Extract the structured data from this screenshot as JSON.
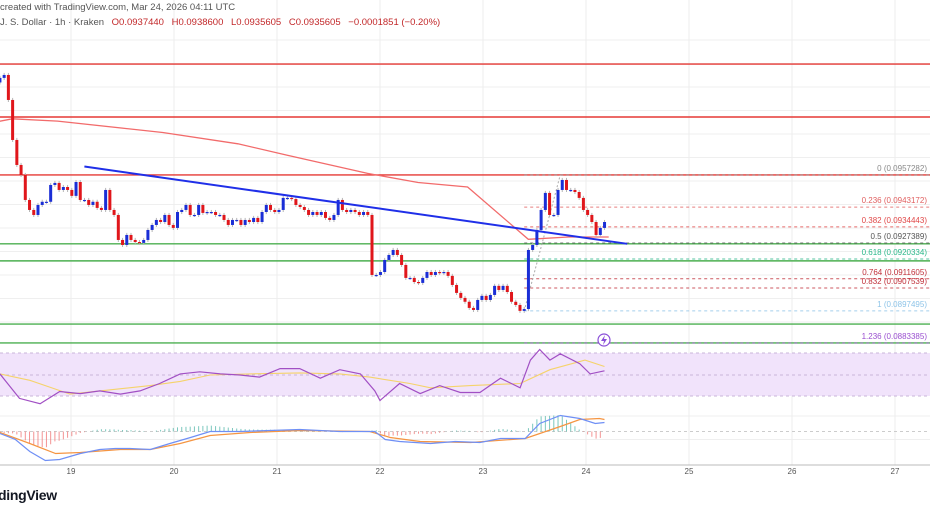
{
  "header": {
    "created": "created with TradingView.com, Mar 24, 2026 04:11 UTC",
    "symbol": "J. S. Dollar · 1h · Kraken",
    "open": "O0.0937440",
    "high": "H0.0938600",
    "low": "L0.0935605",
    "close": "C0.0935605",
    "change": "−0.0001851 (−0.20%)"
  },
  "logo": "dingView",
  "colors": {
    "up": "#1a2ed6",
    "down": "#e0161b",
    "trend": "#1f2fe8",
    "ma": "#f26b6b",
    "rsi": "#a14fc4",
    "rsi_ma": "#f5d36b",
    "macd": "#6f8ff5",
    "signal": "#f59542",
    "hist_up": "#4fb5a8",
    "hist_down": "#f07070",
    "support": "#4caf50",
    "resistance": "#e53935"
  },
  "icons": {
    "event": "lightning-icon"
  },
  "chart_data": [
    {
      "type": "candlestick",
      "x_axis_ticks": [
        "19",
        "20",
        "21",
        "22",
        "23",
        "24",
        "25",
        "26",
        "27"
      ],
      "x_range_dates": [
        18.31,
        24.18
      ],
      "first_open": 0.0998,
      "closes": [
        0.1,
        0.10013,
        0.09903,
        0.09727,
        0.09617,
        0.09573,
        0.09463,
        0.09419,
        0.09397,
        0.09441,
        0.09455,
        0.09455,
        0.09529,
        0.09538,
        0.09507,
        0.0952,
        0.09507,
        0.09481,
        0.09542,
        0.09463,
        0.09463,
        0.09441,
        0.09455,
        0.09428,
        0.09419,
        0.09507,
        0.09419,
        0.09397,
        0.09287,
        0.09265,
        0.09309,
        0.09287,
        0.09278,
        0.09274,
        0.09287,
        0.09331,
        0.09353,
        0.09375,
        0.09366,
        0.09397,
        0.09353,
        0.0934,
        0.0941,
        0.09419,
        0.09441,
        0.09397,
        0.09397,
        0.09441,
        0.09406,
        0.0941,
        0.0941,
        0.09397,
        0.09397,
        0.09375,
        0.09353,
        0.09375,
        0.09375,
        0.09353,
        0.09375,
        0.09366,
        0.09384,
        0.09366,
        0.0941,
        0.09441,
        0.09419,
        0.0941,
        0.09419,
        0.09472,
        0.09472,
        0.09467,
        0.09441,
        0.09432,
        0.09419,
        0.09397,
        0.0941,
        0.09397,
        0.0941,
        0.09384,
        0.09375,
        0.09397,
        0.09463,
        0.09419,
        0.0941,
        0.09419,
        0.0941,
        0.09397,
        0.0941,
        0.09397,
        0.09133,
        0.09133,
        0.09146,
        0.09199,
        0.09221,
        0.09243,
        0.09221,
        0.09177,
        0.0912,
        0.0912,
        0.09102,
        0.09098,
        0.0912,
        0.09146,
        0.09133,
        0.09146,
        0.09142,
        0.09146,
        0.09129,
        0.09089,
        0.09054,
        0.09032,
        0.09015,
        0.08988,
        0.08979,
        0.09023,
        0.09041,
        0.09023,
        0.09045,
        0.09085,
        0.09067,
        0.09085,
        0.09058,
        0.09015,
        0.09001,
        0.08975,
        0.08983,
        0.09243,
        0.09265,
        0.09331,
        0.09419,
        0.09494,
        0.09397,
        0.09397,
        0.09507,
        0.09551,
        0.09507,
        0.09507,
        0.09498,
        0.09472,
        0.09419,
        0.09397,
        0.09366,
        0.09309,
        0.0934,
        0.09366
      ],
      "moving_average": [
        [
          18.2,
          0.098
        ],
        [
          18.43,
          0.0982
        ],
        [
          18.87,
          0.0981
        ],
        [
          19.89,
          0.0976
        ],
        [
          20.62,
          0.0971
        ],
        [
          21.1,
          0.0966
        ],
        [
          21.88,
          0.0958
        ],
        [
          22.37,
          0.0954
        ],
        [
          22.85,
          0.0952
        ],
        [
          23.44,
          0.0929
        ],
        [
          23.83,
          0.093
        ],
        [
          24.22,
          0.093
        ]
      ],
      "trendline": [
        [
          19.13,
          0.0961
        ],
        [
          24.4,
          0.0927
        ]
      ],
      "horizontal_levels": {
        "resistance": [
          0.10061,
          0.09828,
          0.09573
        ],
        "support": [
          0.0927,
          0.09195,
          0.08917,
          0.08834
        ]
      },
      "fibonacci": {
        "from_date": 23.4,
        "levels": [
          {
            "label": "0 (0.0957282)",
            "price": 0.0957282,
            "color": "#888888"
          },
          {
            "label": "0.236 (0.0943172)",
            "price": 0.0943172,
            "color": "#e06060"
          },
          {
            "label": "0.382 (0.0934443)",
            "price": 0.0934443,
            "color": "#e04848"
          },
          {
            "label": "0.5 (0.0927389)",
            "price": 0.0927389,
            "color": "#555555"
          },
          {
            "label": "0.618 (0.0920334)",
            "price": 0.0920334,
            "color": "#2bb88a"
          },
          {
            "label": "0.764 (0.0911605)",
            "price": 0.0911605,
            "color": "#c0303a"
          },
          {
            "label": "0.832 (0.0907539)",
            "price": 0.0907539,
            "color": "#c0303a"
          },
          {
            "label": "1 (0.0897495)",
            "price": 0.0897495,
            "color": "#8ec4e8"
          },
          {
            "label": "1.236 (0.0883385)",
            "price": 0.0883385,
            "color": "#9a4fd0"
          }
        ]
      }
    },
    {
      "type": "line",
      "indicator": "RSI",
      "ylim": [
        30,
        70
      ],
      "rsi": [
        [
          18.31,
          51
        ],
        [
          18.5,
          28
        ],
        [
          18.7,
          23
        ],
        [
          18.89,
          34.5
        ],
        [
          19.09,
          32.5
        ],
        [
          19.28,
          35
        ],
        [
          19.48,
          32
        ],
        [
          19.67,
          35
        ],
        [
          19.86,
          42
        ],
        [
          20.06,
          51
        ],
        [
          20.25,
          53
        ],
        [
          20.45,
          51
        ],
        [
          20.64,
          50
        ],
        [
          20.83,
          48
        ],
        [
          21.03,
          56
        ],
        [
          21.22,
          56
        ],
        [
          21.42,
          47
        ],
        [
          21.61,
          55
        ],
        [
          21.81,
          51
        ],
        [
          21.95,
          35
        ],
        [
          22.0,
          26
        ],
        [
          22.19,
          42
        ],
        [
          22.39,
          32.5
        ],
        [
          22.58,
          40
        ],
        [
          22.78,
          33.5
        ],
        [
          22.97,
          33.5
        ],
        [
          23.17,
          47
        ],
        [
          23.36,
          38
        ],
        [
          23.46,
          64
        ],
        [
          23.55,
          74
        ],
        [
          23.65,
          64
        ],
        [
          23.75,
          70
        ],
        [
          23.94,
          60.6
        ],
        [
          24.04,
          51
        ],
        [
          24.18,
          54
        ]
      ],
      "rsi_ma": [
        [
          18.31,
          51
        ],
        [
          18.6,
          45
        ],
        [
          18.99,
          32
        ],
        [
          19.28,
          35
        ],
        [
          19.77,
          40
        ],
        [
          20.06,
          44
        ],
        [
          20.35,
          50
        ],
        [
          20.74,
          51
        ],
        [
          21.22,
          52
        ],
        [
          21.61,
          51
        ],
        [
          21.9,
          48
        ],
        [
          22.29,
          42
        ],
        [
          22.49,
          38
        ],
        [
          22.88,
          40
        ],
        [
          23.36,
          42
        ],
        [
          23.65,
          55
        ],
        [
          23.99,
          64
        ],
        [
          24.18,
          58
        ]
      ]
    },
    {
      "type": "line",
      "indicator": "MACD",
      "macd": [
        [
          18.31,
          -2
        ],
        [
          18.46,
          -8
        ],
        [
          18.6,
          -20
        ],
        [
          18.75,
          -29
        ],
        [
          18.89,
          -28
        ],
        [
          19.09,
          -22
        ],
        [
          19.28,
          -18
        ],
        [
          19.43,
          -17
        ],
        [
          19.57,
          -17
        ],
        [
          19.77,
          -18
        ],
        [
          19.96,
          -12
        ],
        [
          20.16,
          -6
        ],
        [
          20.35,
          0
        ],
        [
          20.64,
          0
        ],
        [
          20.93,
          1
        ],
        [
          21.22,
          2
        ],
        [
          21.61,
          0
        ],
        [
          21.95,
          0
        ],
        [
          22.05,
          -8
        ],
        [
          22.19,
          -10
        ],
        [
          22.49,
          -12
        ],
        [
          22.73,
          -10
        ],
        [
          22.97,
          -11
        ],
        [
          23.17,
          -7
        ],
        [
          23.41,
          -7
        ],
        [
          23.55,
          8
        ],
        [
          23.75,
          16
        ],
        [
          23.94,
          13
        ],
        [
          24.09,
          8
        ],
        [
          24.18,
          9
        ]
      ],
      "signal": [
        [
          18.31,
          -1
        ],
        [
          18.6,
          -12
        ],
        [
          18.85,
          -22
        ],
        [
          19.09,
          -21
        ],
        [
          19.48,
          -18
        ],
        [
          19.77,
          -18
        ],
        [
          20.06,
          -12
        ],
        [
          20.35,
          -4
        ],
        [
          20.74,
          -1
        ],
        [
          21.22,
          1
        ],
        [
          21.9,
          0
        ],
        [
          22.1,
          -6
        ],
        [
          22.39,
          -10
        ],
        [
          22.88,
          -11
        ],
        [
          23.41,
          -7
        ],
        [
          23.75,
          5
        ],
        [
          23.94,
          12
        ],
        [
          24.13,
          13
        ],
        [
          24.18,
          12
        ]
      ]
    }
  ]
}
